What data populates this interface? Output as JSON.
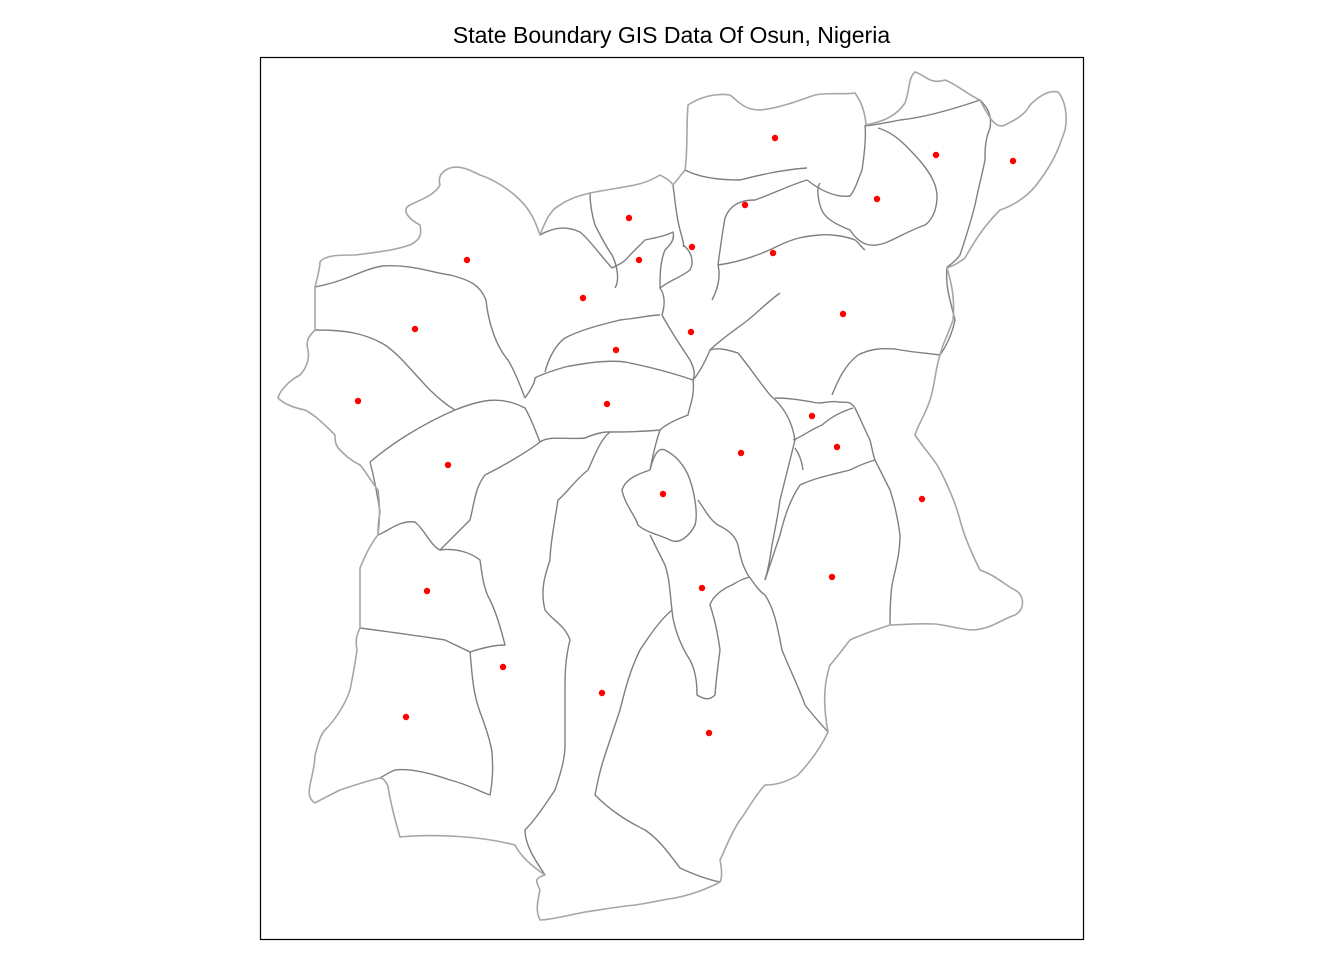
{
  "title": "State Boundary GIS Data Of Osun, Nigeria",
  "colors": {
    "frame": "#000000",
    "outer_boundary": "#a6a6a6",
    "inner_boundary": "#7f7f7f",
    "centroid": "#ff0000"
  },
  "lga_count": 30
}
